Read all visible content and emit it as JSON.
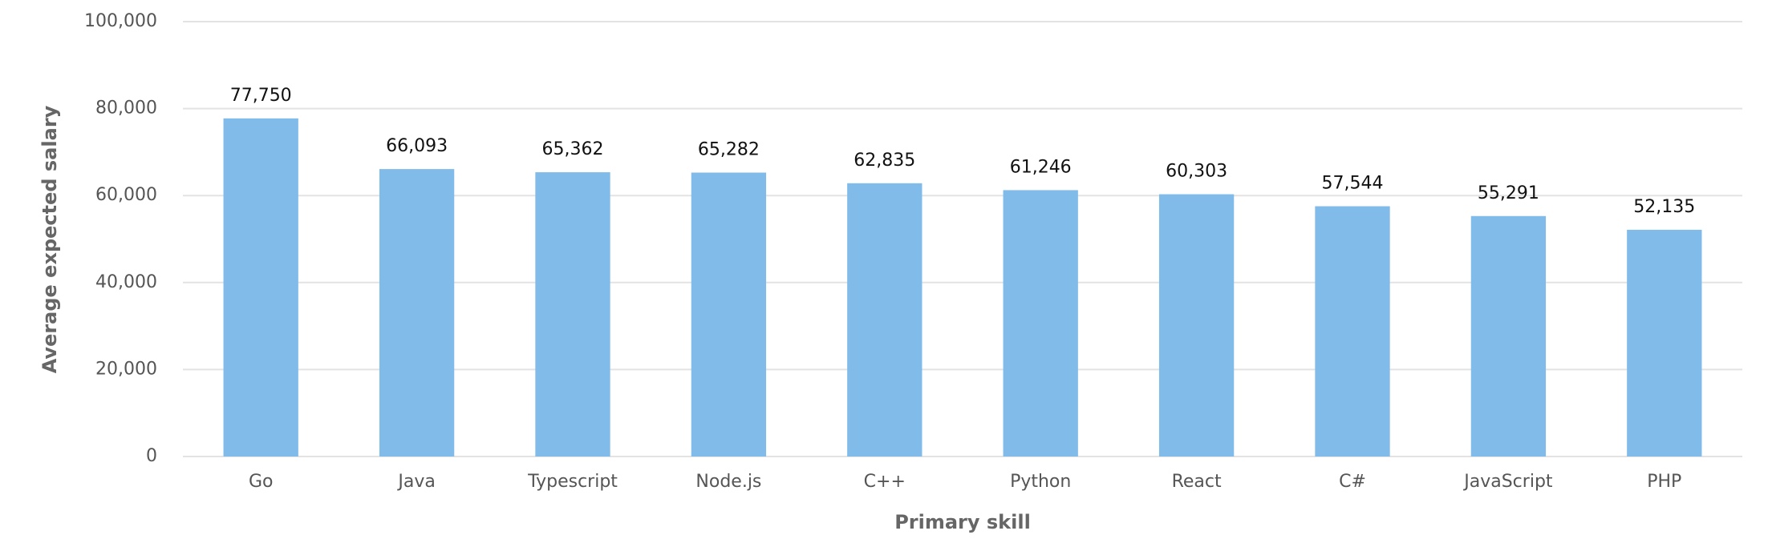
{
  "chart_data": {
    "type": "bar",
    "x_label": "Primary skill",
    "y_label": "Average expected salary",
    "categories": [
      "Go",
      "Java",
      "Typescript",
      "Node.js",
      "C++",
      "Python",
      "React",
      "C#",
      "JavaScript",
      "PHP"
    ],
    "values": [
      77750,
      66093,
      65362,
      65282,
      62835,
      61246,
      60303,
      57544,
      55291,
      52135
    ],
    "value_labels": [
      "77,750",
      "66,093",
      "65,362",
      "65,282",
      "62,835",
      "61,246",
      "60,303",
      "57,544",
      "55,291",
      "52,135"
    ],
    "color": "#80bbea",
    "ylim": [
      0,
      100000
    ],
    "yticks": [
      0,
      {
        "value": 20000,
        "label": "20,000"
      },
      {
        "value": 40000,
        "label": "40,000"
      },
      {
        "value": 60000,
        "label": "60,000"
      },
      {
        "value": 80000,
        "label": "80,000"
      },
      {
        "value": 100000,
        "label": "100,000"
      }
    ],
    "grid": true
  }
}
